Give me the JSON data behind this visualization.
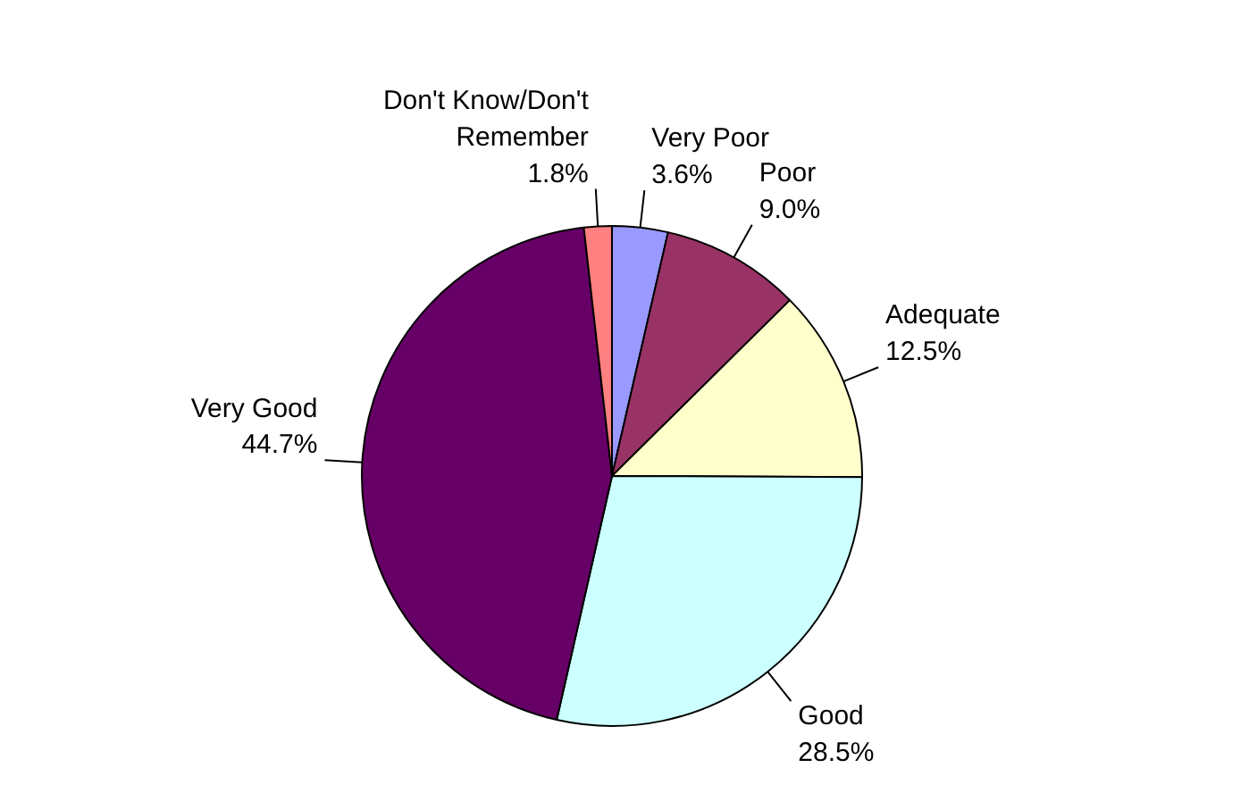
{
  "chart_data": {
    "type": "pie",
    "categories": [
      "Very Poor",
      "Poor",
      "Adequate",
      "Good",
      "Very Good",
      "Don't Know/Don't Remember"
    ],
    "values": [
      3.6,
      9.0,
      12.5,
      28.5,
      44.7,
      1.8
    ],
    "colors": [
      "#9999ff",
      "#993366",
      "#ffffcc",
      "#ccffff",
      "#660066",
      "#ff8080"
    ],
    "value_labels": [
      "3.6%",
      "9.0%",
      "12.5%",
      "28.5%",
      "44.7%",
      "1.8%"
    ]
  }
}
